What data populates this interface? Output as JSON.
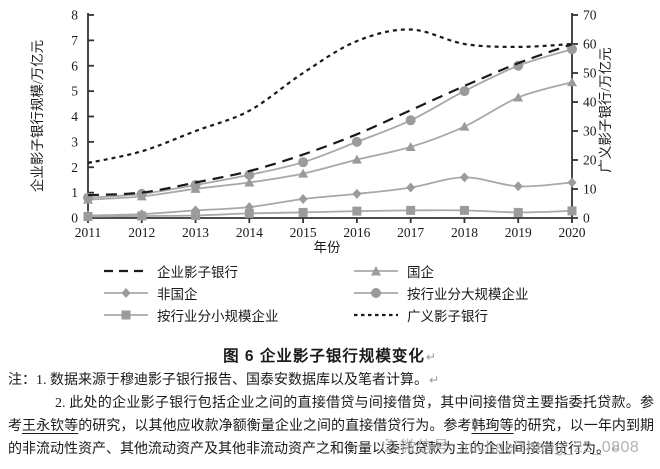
{
  "chart_data": {
    "type": "line",
    "title": "图 6 企业影子银行规模变化",
    "xlabel": "年份",
    "ylabel_left": "企业影子银行规模/万亿元",
    "ylabel_right": "广义影子银行/万亿元",
    "x": [
      "2011",
      "2012",
      "2013",
      "2014",
      "2015",
      "2016",
      "2017",
      "2018",
      "2019",
      "2020"
    ],
    "ylim_left": [
      0,
      8
    ],
    "ylim_right": [
      0,
      70
    ],
    "yticks_left": [
      0,
      1,
      2,
      3,
      4,
      5,
      6,
      7,
      8
    ],
    "yticks_right": [
      0,
      10,
      20,
      30,
      40,
      50,
      60,
      70
    ],
    "grid": false,
    "legend_position": "below",
    "series": [
      {
        "key": "soe",
        "name": "国企",
        "axis": "left",
        "style": "triangle",
        "color": "#a8a8a8",
        "values": [
          0.72,
          0.85,
          1.15,
          1.4,
          1.75,
          2.3,
          2.8,
          3.6,
          4.75,
          5.35
        ]
      },
      {
        "key": "non-soe",
        "name": "非国企",
        "axis": "left",
        "style": "diamond",
        "color": "#a8a8a8",
        "values": [
          0.1,
          0.15,
          0.3,
          0.43,
          0.75,
          0.95,
          1.2,
          1.6,
          1.25,
          1.4
        ]
      },
      {
        "key": "large-firms",
        "name": "按行业分大规模企业",
        "axis": "left",
        "style": "circle",
        "color": "#a8a8a8",
        "values": [
          0.8,
          0.95,
          1.3,
          1.7,
          2.2,
          3.0,
          3.85,
          5.0,
          6.0,
          6.65
        ]
      },
      {
        "key": "small-firms",
        "name": "按行业分小规模企业",
        "axis": "left",
        "style": "square",
        "color": "#a8a8a8",
        "values": [
          0.06,
          0.08,
          0.1,
          0.18,
          0.22,
          0.27,
          0.3,
          0.3,
          0.22,
          0.28
        ]
      },
      {
        "key": "corporate-shadow-banking",
        "name": "企业影子银行",
        "axis": "left",
        "style": "dash-long",
        "color": "#1a1a1a",
        "values": [
          0.9,
          1.0,
          1.4,
          1.85,
          2.5,
          3.3,
          4.25,
          5.2,
          6.1,
          6.85
        ]
      },
      {
        "key": "broad-shadow-banking",
        "name": "广义影子银行",
        "axis": "right",
        "style": "dash-short",
        "color": "#1a1a1a",
        "values": [
          19,
          23,
          30,
          37,
          50,
          61,
          65,
          60,
          59,
          60
        ]
      }
    ]
  },
  "legend": {
    "items": [
      {
        "key": "corporate-shadow-banking",
        "label": "企业影子银行",
        "style": "dash-long"
      },
      {
        "key": "soe",
        "label": "国企",
        "style": "triangle"
      },
      {
        "key": "non-soe",
        "label": "非国企",
        "style": "diamond"
      },
      {
        "key": "large-firms",
        "label": "按行业分大规模企业",
        "style": "circle"
      },
      {
        "key": "small-firms",
        "label": "按行业分小规模企业",
        "style": "square"
      },
      {
        "key": "broad-shadow-banking",
        "label": "广义影子银行",
        "style": "dash-short"
      }
    ]
  },
  "caption": {
    "text": "图 6 企业影子银行规模变化",
    "return_mark": "↵"
  },
  "notes": {
    "note1": "注：1. 数据来源于穆迪影子银行报告、国泰安数据库以及笔者计算。",
    "return_mark": "↵",
    "note2_segments": [
      {
        "text": "2. 此处的企业影子银行包括企业之间的直接借贷与间接借贷，其中间接借贷主要指委托贷款。参考",
        "underline": false
      },
      {
        "text": "王永钦等",
        "underline": true
      },
      {
        "text": "的研究，以其他应收款净额衡量企业之间的直接借贷行为。参考",
        "underline": false
      },
      {
        "text": "韩珣等",
        "underline": true
      },
      {
        "text": "的研究，以一年内到期的非流动性资产、其他流动资产及其他非流动资产之和衡量以委托贷款为主的企业间接借贷行为。",
        "underline": false
      }
    ]
  },
  "watermark": {
    "text": "微信号: michaelzhang_22_0808"
  },
  "colors": {
    "line_gray": "#a8a8a8",
    "marker_gray": "#9b9b9b",
    "dash_black": "#1a1a1a",
    "axis": "#333333",
    "watermark": "#a8a8a8"
  }
}
